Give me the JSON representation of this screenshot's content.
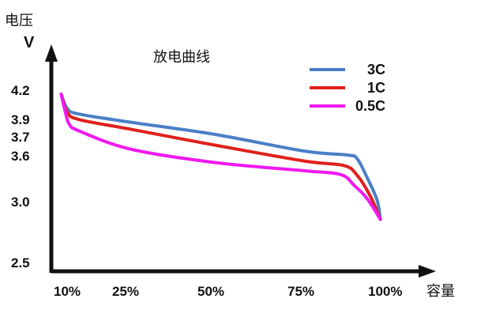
{
  "chart_data": {
    "type": "line",
    "title": "放电曲线",
    "ylabel_top": "电压",
    "ylabel_unit": "V",
    "xlabel": "容量",
    "x_ticks": [
      "10%",
      "25%",
      "50%",
      "75%",
      "100%"
    ],
    "y_ticks": [
      "4.2",
      "3.9",
      "3.7",
      "3.6",
      "3.0",
      "2.5"
    ],
    "legend_position": "top-right",
    "series": [
      {
        "name": "3C",
        "color": "#4a7fc6",
        "points": [
          [
            5,
            4.15
          ],
          [
            8,
            4.0
          ],
          [
            12,
            3.94
          ],
          [
            25,
            3.85
          ],
          [
            50,
            3.71
          ],
          [
            75,
            3.62
          ],
          [
            88,
            3.6
          ],
          [
            91,
            3.55
          ],
          [
            94,
            3.3
          ],
          [
            97,
            3.0
          ],
          [
            98,
            2.82
          ]
        ]
      },
      {
        "name": "1C",
        "color": "#e0201c",
        "points": [
          [
            5,
            4.15
          ],
          [
            8,
            3.96
          ],
          [
            12,
            3.88
          ],
          [
            25,
            3.77
          ],
          [
            50,
            3.65
          ],
          [
            75,
            3.52
          ],
          [
            87,
            3.46
          ],
          [
            91,
            3.33
          ],
          [
            95,
            3.05
          ],
          [
            98,
            2.82
          ]
        ]
      },
      {
        "name": "0.5C",
        "color": "#f019f0",
        "points": [
          [
            5,
            4.15
          ],
          [
            7,
            3.97
          ],
          [
            9,
            3.83
          ],
          [
            12,
            3.75
          ],
          [
            25,
            3.63
          ],
          [
            50,
            3.5
          ],
          [
            75,
            3.39
          ],
          [
            86,
            3.34
          ],
          [
            90,
            3.2
          ],
          [
            94,
            3.02
          ],
          [
            98,
            2.82
          ]
        ]
      }
    ]
  }
}
